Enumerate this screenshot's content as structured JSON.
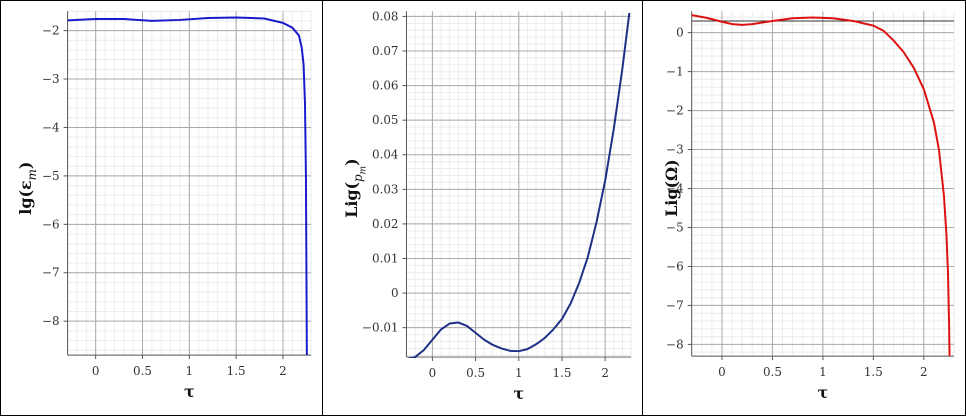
{
  "chart_data": [
    {
      "type": "line",
      "xlabel": "τ",
      "ylabel": "lg(ε",
      "ylabel_sub": "m",
      "ylabel_close": ")",
      "xlim": [
        -0.3,
        2.3
      ],
      "ylim": [
        -8.7,
        -1.6
      ],
      "xticks": [
        0,
        0.5,
        1,
        1.5,
        2
      ],
      "xtick_labels": [
        "0",
        "0.5",
        "1",
        "1.5",
        "2"
      ],
      "yticks": [
        -2,
        -3,
        -4,
        -5,
        -6,
        -7,
        -8
      ],
      "ytick_labels": [
        "−2",
        "−3",
        "−4",
        "−5",
        "−6",
        "−7",
        "−8"
      ],
      "grid": true,
      "color": "#1a1acc",
      "x": [
        -0.3,
        0.0,
        0.3,
        0.6,
        0.9,
        1.2,
        1.5,
        1.8,
        2.0,
        2.1,
        2.17,
        2.2,
        2.22,
        2.235,
        2.245,
        2.25,
        2.255
      ],
      "y": [
        -1.79,
        -1.76,
        -1.76,
        -1.8,
        -1.78,
        -1.74,
        -1.73,
        -1.75,
        -1.84,
        -1.94,
        -2.1,
        -2.35,
        -2.7,
        -3.5,
        -5.0,
        -6.8,
        -8.7
      ]
    },
    {
      "type": "line",
      "xlabel": "τ",
      "ylabel": "Lig(",
      "ylabel_sub": "p",
      "ylabel_sub2": "m",
      "ylabel_close": ")",
      "xlim": [
        -0.3,
        2.3
      ],
      "ylim": [
        -0.0185,
        0.0815
      ],
      "xticks": [
        0,
        0.5,
        1,
        1.5,
        2
      ],
      "xtick_labels": [
        "0",
        "0.5",
        "1",
        "1.5",
        "2"
      ],
      "yticks": [
        0.08,
        0.07,
        0.06,
        0.05,
        0.04,
        0.03,
        0.02,
        0.01,
        0,
        -0.01
      ],
      "ytick_labels": [
        "0.08",
        "0.07",
        "0.06",
        "0.05",
        "0.04",
        "0.03",
        "0.02",
        "0.01",
        "0",
        "−0.01"
      ],
      "grid": true,
      "color": "#1f2f86",
      "x": [
        -0.28,
        -0.2,
        -0.1,
        0.0,
        0.1,
        0.2,
        0.3,
        0.4,
        0.5,
        0.6,
        0.7,
        0.8,
        0.9,
        1.0,
        1.1,
        1.2,
        1.3,
        1.4,
        1.5,
        1.6,
        1.7,
        1.8,
        1.9,
        2.0,
        2.1,
        2.2,
        2.28
      ],
      "y": [
        -0.019,
        -0.0185,
        -0.0165,
        -0.0135,
        -0.0105,
        -0.0088,
        -0.0085,
        -0.0095,
        -0.0115,
        -0.0135,
        -0.015,
        -0.016,
        -0.0167,
        -0.0168,
        -0.0162,
        -0.0148,
        -0.013,
        -0.0105,
        -0.0075,
        -0.003,
        0.003,
        0.0105,
        0.0205,
        0.0325,
        0.0475,
        0.065,
        0.081
      ]
    },
    {
      "type": "line",
      "xlabel": "τ",
      "ylabel": "Lig(Ω)",
      "xlim": [
        -0.3,
        2.3
      ],
      "ylim": [
        -8.3,
        0.55
      ],
      "xticks": [
        0,
        0.5,
        1,
        1.5,
        2
      ],
      "xtick_labels": [
        "0",
        "0.5",
        "1",
        "1.5",
        "2"
      ],
      "yticks": [
        0,
        -1,
        -2,
        -3,
        -4,
        -5,
        -6,
        -7,
        -8
      ],
      "ytick_labels": [
        "0",
        "−1",
        "−2",
        "−3",
        "−4",
        "−5",
        "−6",
        "−7",
        "−8"
      ],
      "grid": true,
      "color": "#dd1111",
      "reference_line": 0.3,
      "x": [
        -0.3,
        -0.15,
        0.0,
        0.1,
        0.2,
        0.3,
        0.5,
        0.7,
        0.9,
        1.1,
        1.3,
        1.5,
        1.6,
        1.7,
        1.8,
        1.9,
        2.0,
        2.1,
        2.15,
        2.2,
        2.225,
        2.24,
        2.25,
        2.255
      ],
      "y": [
        0.45,
        0.38,
        0.28,
        0.22,
        0.2,
        0.22,
        0.3,
        0.37,
        0.39,
        0.37,
        0.3,
        0.18,
        0.05,
        -0.2,
        -0.5,
        -0.9,
        -1.45,
        -2.3,
        -3.0,
        -4.2,
        -5.2,
        -6.2,
        -7.4,
        -8.3
      ]
    }
  ]
}
